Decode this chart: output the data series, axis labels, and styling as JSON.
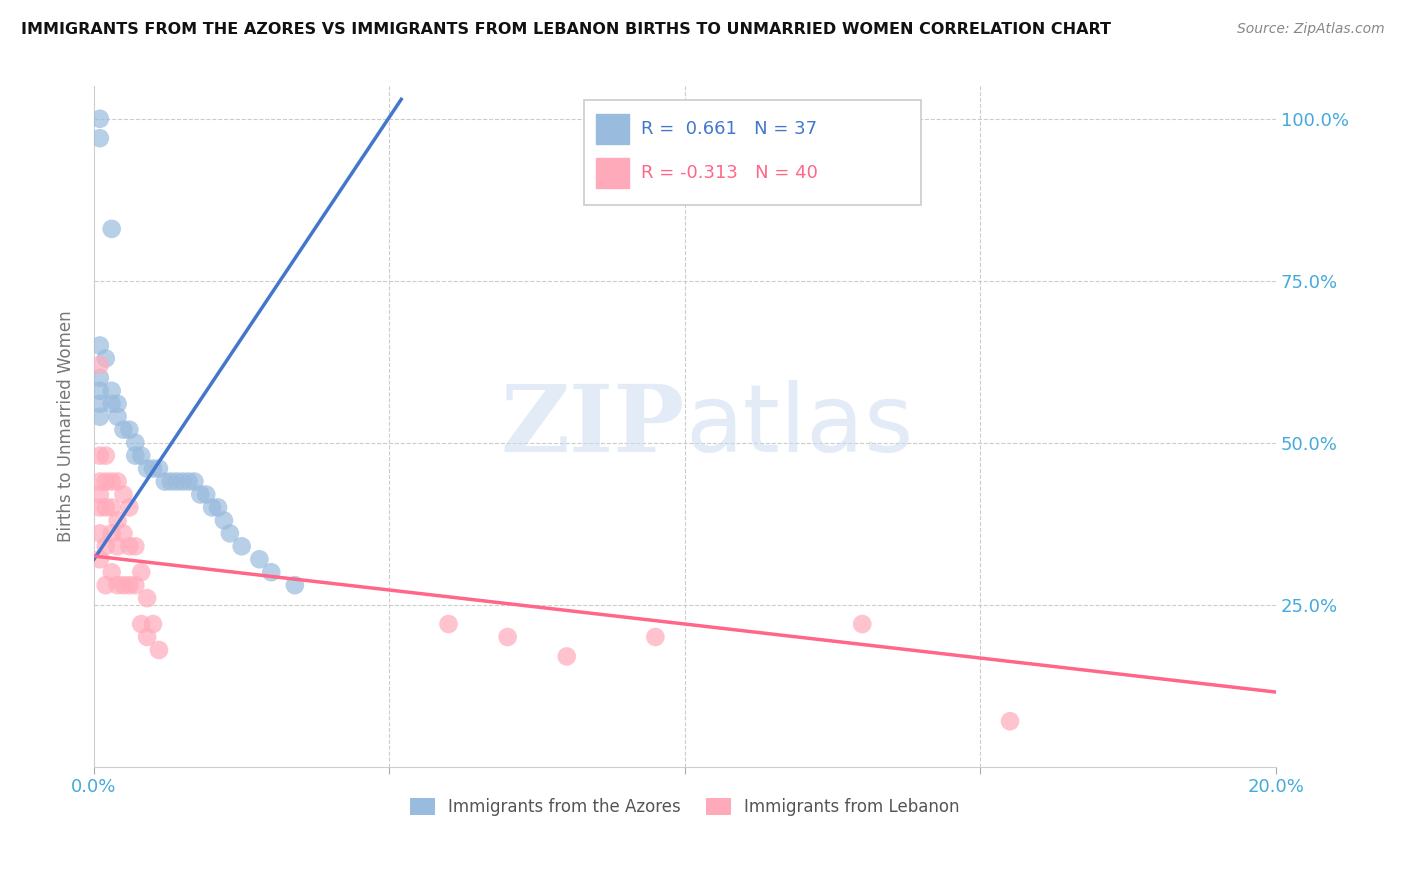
{
  "title": "IMMIGRANTS FROM THE AZORES VS IMMIGRANTS FROM LEBANON BIRTHS TO UNMARRIED WOMEN CORRELATION CHART",
  "source": "Source: ZipAtlas.com",
  "ylabel": "Births to Unmarried Women",
  "xmin": 0.0,
  "xmax": 0.2,
  "ymin": 0.0,
  "ymax": 1.05,
  "legend_label_azores": "Immigrants from the Azores",
  "legend_label_lebanon": "Immigrants from Lebanon",
  "color_azores": "#99BBDD",
  "color_lebanon": "#FFAABB",
  "color_line_azores": "#4477CC",
  "color_line_lebanon": "#FF6688",
  "az_line_x0": 0.0,
  "az_line_y0": 0.32,
  "az_line_x1": 0.052,
  "az_line_y1": 1.03,
  "lb_line_x0": 0.0,
  "lb_line_y0": 0.325,
  "lb_line_x1": 0.2,
  "lb_line_y1": 0.115,
  "azores_x": [
    0.001,
    0.003,
    0.001,
    0.002,
    0.001,
    0.001,
    0.001,
    0.001,
    0.003,
    0.003,
    0.004,
    0.004,
    0.005,
    0.006,
    0.007,
    0.007,
    0.008,
    0.009,
    0.01,
    0.011,
    0.012,
    0.013,
    0.014,
    0.015,
    0.016,
    0.017,
    0.018,
    0.019,
    0.02,
    0.021,
    0.022,
    0.023,
    0.025,
    0.028,
    0.03,
    0.034,
    0.001
  ],
  "azores_y": [
    1.0,
    0.83,
    0.65,
    0.63,
    0.6,
    0.58,
    0.56,
    0.54,
    0.58,
    0.56,
    0.56,
    0.54,
    0.52,
    0.52,
    0.5,
    0.48,
    0.48,
    0.46,
    0.46,
    0.46,
    0.44,
    0.44,
    0.44,
    0.44,
    0.44,
    0.44,
    0.42,
    0.42,
    0.4,
    0.4,
    0.38,
    0.36,
    0.34,
    0.32,
    0.3,
    0.28,
    0.97
  ],
  "lebanon_x": [
    0.001,
    0.001,
    0.001,
    0.001,
    0.001,
    0.001,
    0.001,
    0.002,
    0.002,
    0.002,
    0.002,
    0.002,
    0.003,
    0.003,
    0.003,
    0.003,
    0.004,
    0.004,
    0.004,
    0.004,
    0.005,
    0.005,
    0.005,
    0.006,
    0.006,
    0.006,
    0.007,
    0.007,
    0.008,
    0.008,
    0.009,
    0.009,
    0.01,
    0.011,
    0.06,
    0.07,
    0.08,
    0.095,
    0.13,
    0.155
  ],
  "lebanon_y": [
    0.62,
    0.48,
    0.44,
    0.42,
    0.4,
    0.36,
    0.32,
    0.48,
    0.44,
    0.4,
    0.34,
    0.28,
    0.44,
    0.4,
    0.36,
    0.3,
    0.44,
    0.38,
    0.34,
    0.28,
    0.42,
    0.36,
    0.28,
    0.4,
    0.34,
    0.28,
    0.34,
    0.28,
    0.3,
    0.22,
    0.26,
    0.2,
    0.22,
    0.18,
    0.22,
    0.2,
    0.17,
    0.2,
    0.22,
    0.07
  ]
}
